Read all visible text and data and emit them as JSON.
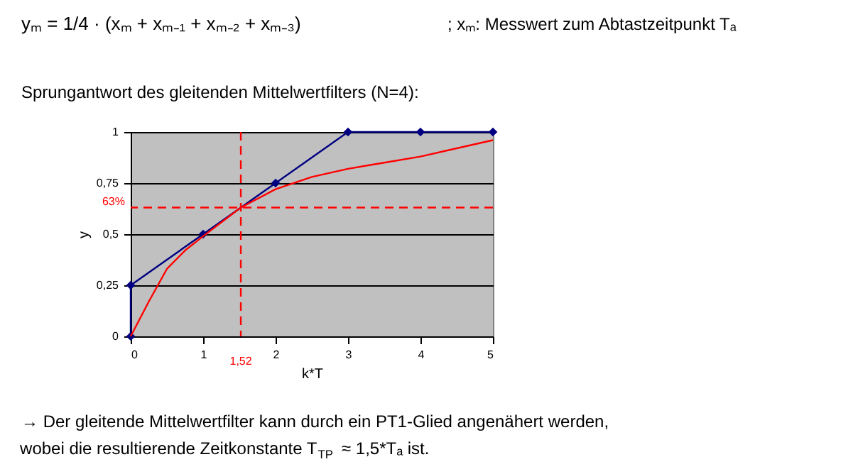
{
  "chart_data": {
    "type": "line",
    "title": "Sprungantwort des gleitenden Mittelwertfilters (N=4):",
    "xlabel": "k*T",
    "ylabel": "y",
    "series": [
      {
        "color": "#000080",
        "marker": "diamond",
        "x": [
          0,
          0,
          1,
          2,
          3,
          4,
          5
        ],
        "values": [
          0,
          0.25,
          0.5,
          0.75,
          1,
          1,
          1
        ]
      },
      {
        "color": "#ff0000",
        "marker": "none",
        "x": [
          0,
          0.25,
          0.5,
          0.75,
          1,
          1.52,
          2,
          2.5,
          3,
          3.5,
          4,
          4.5,
          5
        ],
        "values": [
          0,
          0.17,
          0.33,
          0.42,
          0.49,
          0.63,
          0.72,
          0.78,
          0.82,
          0.85,
          0.88,
          0.92,
          0.96
        ]
      }
    ],
    "xlim": [
      0,
      5
    ],
    "xticks": [
      0,
      1,
      2,
      3,
      4,
      5
    ],
    "ylim": [
      0,
      1
    ],
    "yticks": [
      {
        "value": 0,
        "label": "0"
      },
      {
        "value": 0.25,
        "label": "0,25"
      },
      {
        "value": 0.5,
        "label": "0,5"
      },
      {
        "value": 0.75,
        "label": "0,75"
      },
      {
        "value": 1,
        "label": "1"
      }
    ],
    "grid": "y",
    "legend": false,
    "line_style": "solid",
    "ref_lines": [
      {
        "axis": "y",
        "value": 0.63,
        "label": "63%",
        "color": "#ff0000",
        "line_style": "dashed"
      },
      {
        "axis": "x",
        "value": 1.52,
        "label": "1,52",
        "color": "#ff0000",
        "line_style": "dashed"
      }
    ],
    "annotations": [
      "yₘ = 1/4 · (xₘ + xₘ₋₁ + xₘ₋₂ + xₘ₋₃)",
      "; xₘ: Messwert zum Abtastzeitpunkt Tₐ",
      "→ Der gleitende Mittelwertfilter kann durch ein PT1-Glied angenähert werden,",
      "wobei die resultierende Zeitkonstante T$_{TP}$ ≈ 1,5*Tₐ ist."
    ]
  }
}
